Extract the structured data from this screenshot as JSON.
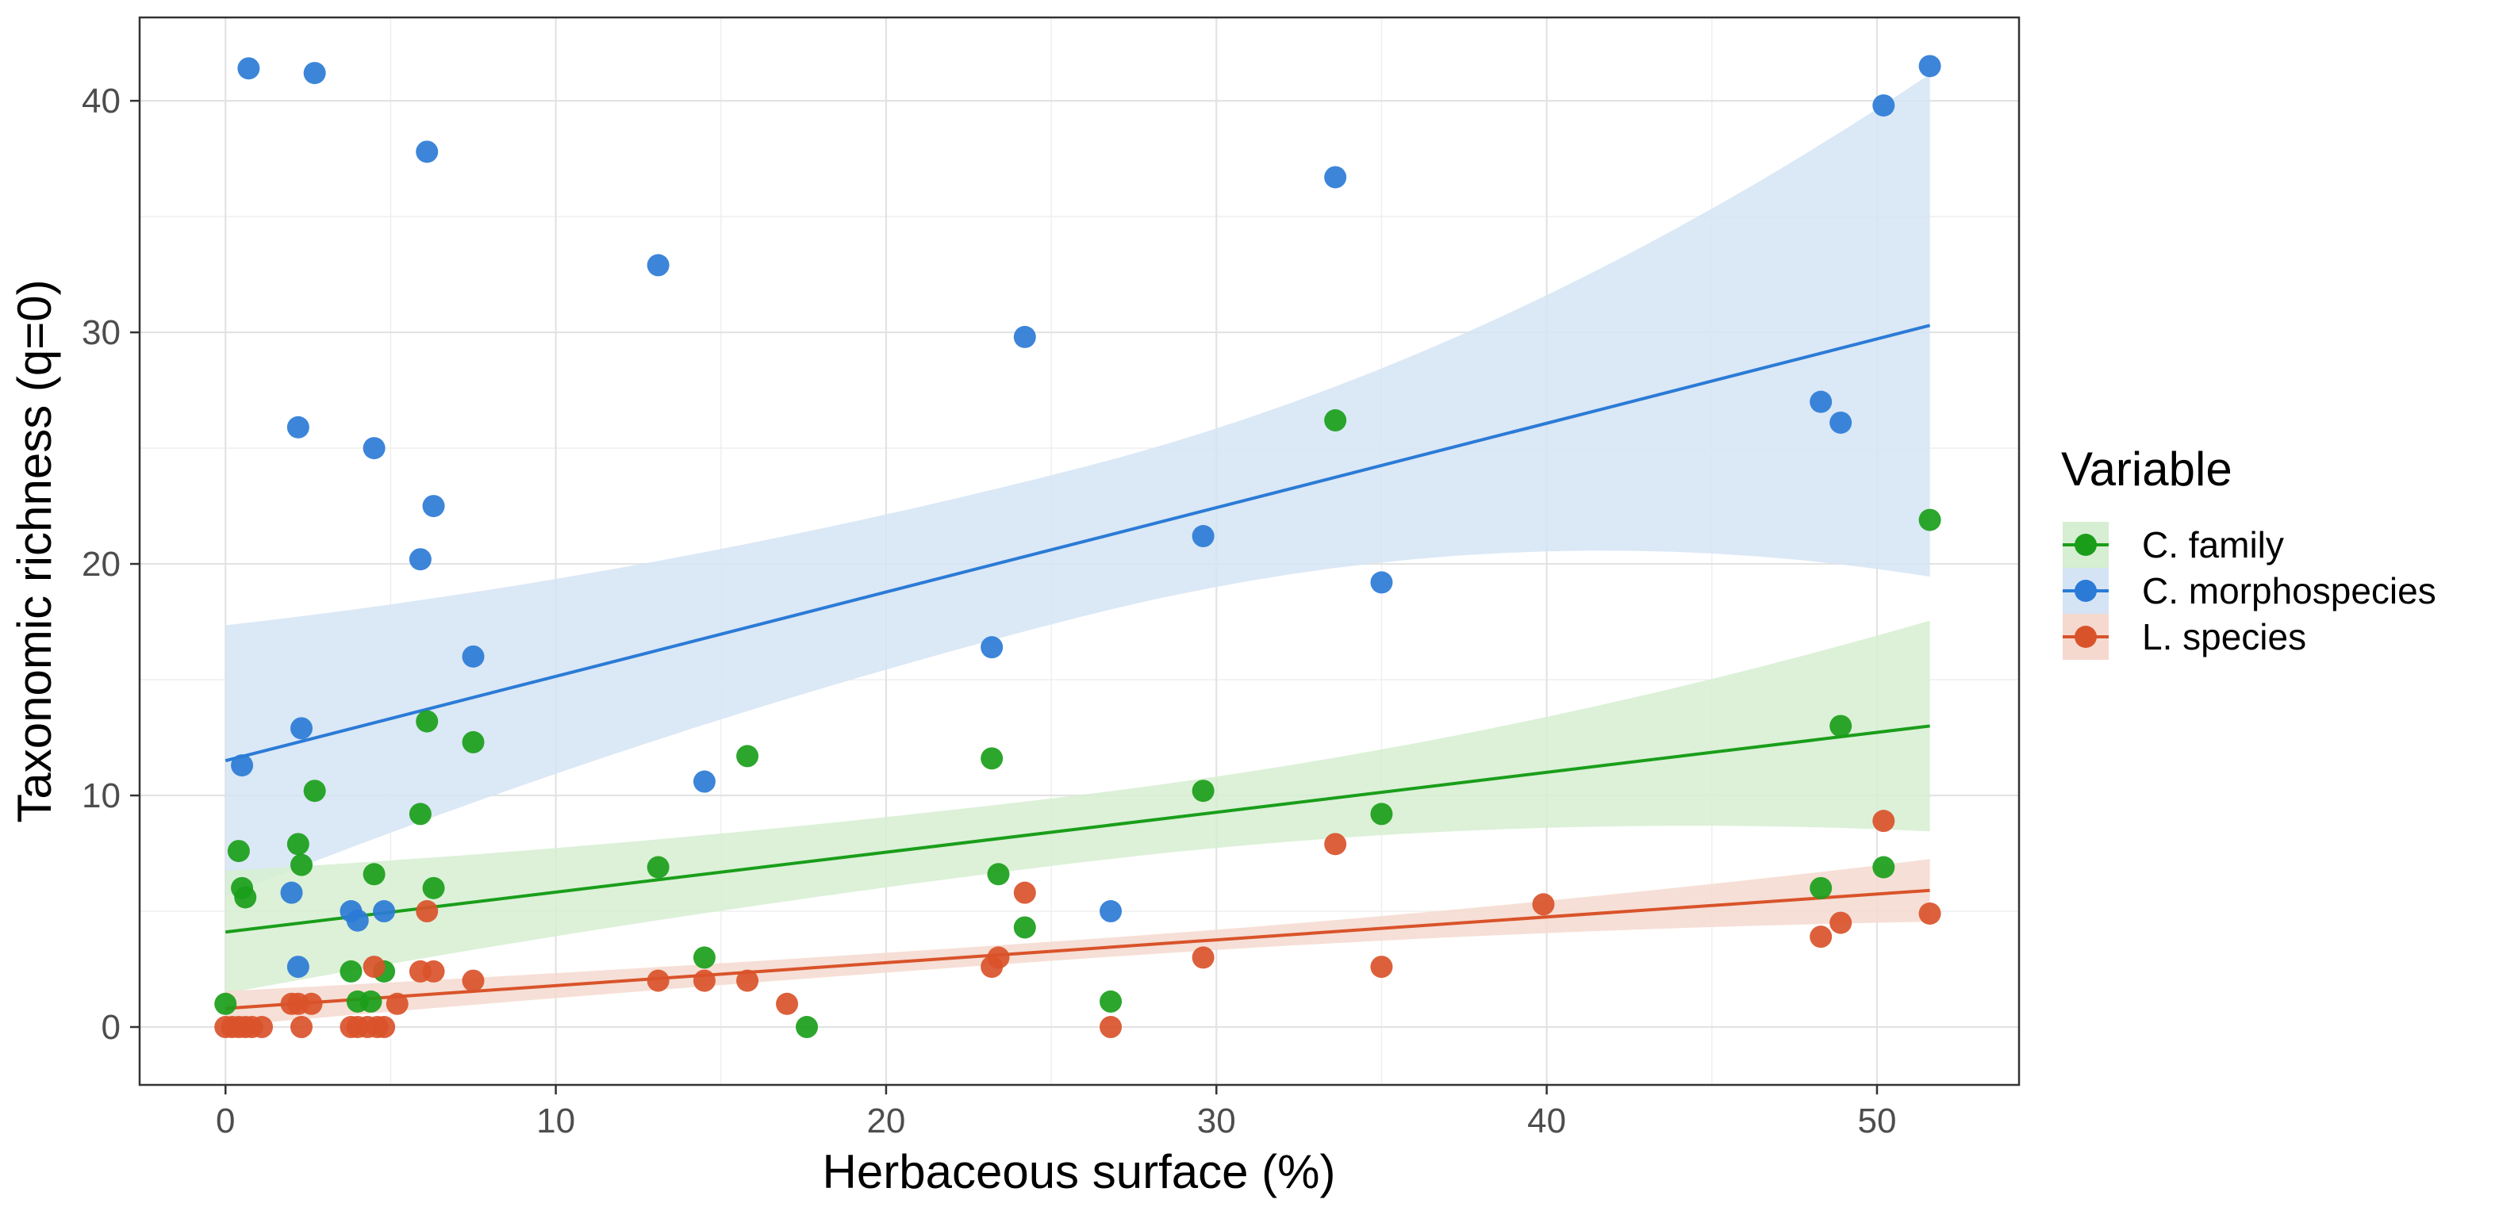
{
  "chart_data": {
    "type": "scatter",
    "xlabel": "Herbaceous surface (%)",
    "ylabel": "Taxonomic richness (q=0)",
    "xlim": [
      -2.6,
      54.3
    ],
    "ylim": [
      -2.5,
      43.6
    ],
    "xticks": [
      0,
      10,
      20,
      30,
      40,
      50
    ],
    "yticks": [
      0,
      10,
      20,
      30,
      40
    ],
    "xtick_labels": [
      "0",
      "10",
      "20",
      "30",
      "40",
      "50"
    ],
    "ytick_labels": [
      "0",
      "10",
      "20",
      "30",
      "40"
    ],
    "grid": true,
    "legend": {
      "title": "Variable",
      "position": "right",
      "entries": [
        "C. family",
        "C. morphospecies",
        "L. species"
      ]
    },
    "series": [
      {
        "name": "C. family",
        "color": "#1a9e1a",
        "band_color": "#d6eed1",
        "trend": {
          "x": [
            0,
            51.6
          ],
          "y": [
            4.1,
            13.0
          ]
        },
        "ci_lower": [
          1.5,
          8.5
        ],
        "ci_upper": [
          6.8,
          17.6
        ],
        "points": [
          [
            0,
            1
          ],
          [
            0.4,
            7.6
          ],
          [
            0.5,
            6
          ],
          [
            0.6,
            5.6
          ],
          [
            2.2,
            7.9
          ],
          [
            2.3,
            7
          ],
          [
            2.7,
            10.2
          ],
          [
            3.8,
            2.4
          ],
          [
            4.0,
            1.1
          ],
          [
            4.4,
            1.1
          ],
          [
            4.5,
            6.6
          ],
          [
            4.8,
            2.4
          ],
          [
            5.9,
            9.2
          ],
          [
            6.1,
            13.2
          ],
          [
            6.3,
            6
          ],
          [
            7.5,
            12.3
          ],
          [
            13.1,
            6.9
          ],
          [
            14.5,
            3
          ],
          [
            15.8,
            11.7
          ],
          [
            17.6,
            0
          ],
          [
            23.2,
            11.6
          ],
          [
            23.4,
            6.6
          ],
          [
            24.2,
            4.3
          ],
          [
            26.8,
            1.1
          ],
          [
            29.6,
            10.2
          ],
          [
            33.6,
            26.2
          ],
          [
            35.0,
            9.2
          ],
          [
            48.3,
            6
          ],
          [
            48.9,
            13
          ],
          [
            50.2,
            6.9
          ],
          [
            51.6,
            21.9
          ]
        ]
      },
      {
        "name": "C. morphospecies",
        "color": "#2b7bd6",
        "band_color": "#d5e4f5",
        "trend": {
          "x": [
            0,
            51.6
          ],
          "y": [
            11.5,
            30.3
          ]
        },
        "ci_lower": [
          5.8,
          19.5
        ],
        "ci_upper": [
          17.5,
          41.2
        ],
        "points": [
          [
            0.5,
            11.3
          ],
          [
            0.7,
            41.4
          ],
          [
            2.0,
            5.8
          ],
          [
            2.2,
            2.6
          ],
          [
            2.2,
            25.9
          ],
          [
            2.3,
            12.9
          ],
          [
            2.7,
            41.2
          ],
          [
            3.8,
            5
          ],
          [
            4.0,
            4.6
          ],
          [
            4.5,
            25
          ],
          [
            4.8,
            5
          ],
          [
            5.9,
            20.2
          ],
          [
            6.1,
            37.8
          ],
          [
            6.3,
            22.5
          ],
          [
            7.5,
            16
          ],
          [
            13.1,
            32.9
          ],
          [
            14.5,
            10.6
          ],
          [
            23.2,
            16.4
          ],
          [
            24.2,
            29.8
          ],
          [
            26.8,
            5
          ],
          [
            29.6,
            21.2
          ],
          [
            33.6,
            36.7
          ],
          [
            35.0,
            19.2
          ],
          [
            48.3,
            27
          ],
          [
            48.9,
            26.1
          ],
          [
            50.2,
            39.8
          ],
          [
            51.6,
            41.5
          ]
        ]
      },
      {
        "name": "L. species",
        "color": "#d9532a",
        "band_color": "#f5d9cf",
        "trend": {
          "x": [
            0,
            51.6
          ],
          "y": [
            0.8,
            5.9
          ]
        },
        "ci_lower": [
          0,
          4.6
        ],
        "ci_upper": [
          1.5,
          7.3
        ],
        "points": [
          [
            0,
            0
          ],
          [
            0.2,
            0
          ],
          [
            0.4,
            0
          ],
          [
            0.6,
            0
          ],
          [
            0.8,
            0
          ],
          [
            1.1,
            0
          ],
          [
            2.0,
            1
          ],
          [
            2.2,
            1
          ],
          [
            2.3,
            0
          ],
          [
            2.6,
            1
          ],
          [
            3.8,
            0
          ],
          [
            4.0,
            0
          ],
          [
            4.3,
            0
          ],
          [
            4.5,
            2.6
          ],
          [
            4.6,
            0
          ],
          [
            4.8,
            0
          ],
          [
            5.2,
            1
          ],
          [
            5.9,
            2.4
          ],
          [
            6.1,
            5
          ],
          [
            6.3,
            2.4
          ],
          [
            7.5,
            2
          ],
          [
            13.1,
            2
          ],
          [
            14.5,
            2
          ],
          [
            15.8,
            2
          ],
          [
            17.0,
            1
          ],
          [
            23.2,
            2.6
          ],
          [
            23.4,
            3
          ],
          [
            24.2,
            5.8
          ],
          [
            26.8,
            0
          ],
          [
            29.6,
            3
          ],
          [
            33.6,
            7.9
          ],
          [
            35.0,
            2.6
          ],
          [
            39.9,
            5.3
          ],
          [
            48.3,
            3.9
          ],
          [
            48.9,
            4.5
          ],
          [
            50.2,
            8.9
          ],
          [
            51.6,
            4.9
          ]
        ]
      }
    ]
  }
}
